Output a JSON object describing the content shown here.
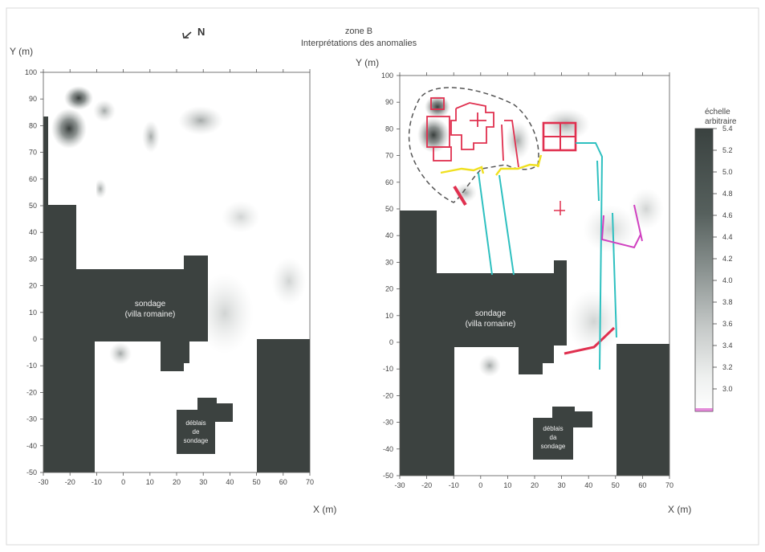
{
  "header": {
    "north_label": "N",
    "title_line1": "zone B",
    "title_line2": "Interprétations des anomalies"
  },
  "axes": {
    "x_ticks": [
      "-30",
      "-20",
      "-10",
      "0",
      "10",
      "20",
      "30",
      "40",
      "50",
      "60",
      "70"
    ],
    "y_ticks": [
      "100",
      "90",
      "80",
      "70",
      "60",
      "50",
      "40",
      "30",
      "20",
      "10",
      "0",
      "-10",
      "-20",
      "-30",
      "-40",
      "-50"
    ],
    "x_label": "X (m)",
    "y_label": "Y (m)"
  },
  "labels": {
    "sondage_line1": "sondage",
    "sondage_line2": "(villa romaine)",
    "deblais_line1": "déblais",
    "deblais_line2": "de",
    "deblais_line3": "sondage",
    "deblais_right_line2": "da"
  },
  "colorbar": {
    "title_line1": "échelle",
    "title_line2": "arbitraire",
    "ticks": [
      "5.4",
      "5.2",
      "5.0",
      "4.8",
      "4.6",
      "4.4",
      "4.2",
      "4.0",
      "3.8",
      "3.6",
      "3.4",
      "3.2",
      "3.0"
    ]
  },
  "colors": {
    "dark_block": "#3c4240",
    "anomaly": "#5a6260",
    "interp_red": "#e0304f",
    "interp_yellow": "#f0e020",
    "interp_cyan": "#2ec0c0",
    "interp_magenta": "#d040c0",
    "dashed_outline": "#555555"
  }
}
